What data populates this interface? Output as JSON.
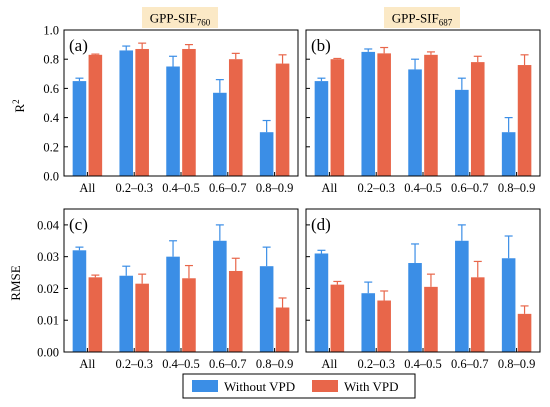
{
  "figure": {
    "col_titles": [
      {
        "base": "GPP-SIF",
        "sub": "760"
      },
      {
        "base": "GPP-SIF",
        "sub": "687"
      }
    ],
    "legend": [
      {
        "label": "Without VPD",
        "color": "#3b8ee6"
      },
      {
        "label": "With VPD",
        "color": "#e8664a"
      }
    ],
    "colors": {
      "without": "#3b8ee6",
      "with": "#e8664a",
      "title_box": "#fbe9c6",
      "error_bar": "#3b8ee6"
    }
  },
  "chart_data": [
    {
      "panel": "(a)",
      "type": "bar",
      "categories": [
        "All",
        "0.2–0.3",
        "0.4–0.5",
        "0.6–0.7",
        "0.8–0.9"
      ],
      "ylabel": {
        "base": "R",
        "sup": "2"
      },
      "ylim": [
        0,
        1.0
      ],
      "yticks": [
        "0.0",
        "0.2",
        "0.4",
        "0.6",
        "0.8",
        "1.0"
      ],
      "ytick_values": [
        0,
        0.2,
        0.4,
        0.6,
        0.8,
        1.0
      ],
      "series": [
        {
          "name": "Without VPD",
          "values": [
            0.65,
            0.86,
            0.75,
            0.57,
            0.3
          ],
          "errors": [
            0.02,
            0.03,
            0.07,
            0.09,
            0.08
          ]
        },
        {
          "name": "With VPD",
          "values": [
            0.83,
            0.87,
            0.87,
            0.8,
            0.77
          ],
          "errors": [
            0.005,
            0.04,
            0.03,
            0.04,
            0.06
          ]
        }
      ]
    },
    {
      "panel": "(b)",
      "type": "bar",
      "categories": [
        "All",
        "0.2–0.3",
        "0.4–0.5",
        "0.6–0.7",
        "0.8–0.9"
      ],
      "ylim": [
        0,
        1.0
      ],
      "ytick_values": [
        0,
        0.2,
        0.4,
        0.6,
        0.8,
        1.0
      ],
      "series": [
        {
          "name": "Without VPD",
          "values": [
            0.65,
            0.85,
            0.73,
            0.59,
            0.3
          ],
          "errors": [
            0.02,
            0.02,
            0.07,
            0.08,
            0.1
          ]
        },
        {
          "name": "With VPD",
          "values": [
            0.8,
            0.84,
            0.83,
            0.78,
            0.76
          ],
          "errors": [
            0.005,
            0.04,
            0.02,
            0.04,
            0.07
          ]
        }
      ]
    },
    {
      "panel": "(c)",
      "type": "bar",
      "categories": [
        "All",
        "0.2–0.3",
        "0.4–0.5",
        "0.6–0.7",
        "0.8–0.9"
      ],
      "ylabel": {
        "base": "RMSE",
        "sup": ""
      },
      "ylim": [
        0,
        0.045
      ],
      "yticks": [
        "0.00",
        "0.01",
        "0.02",
        "0.03",
        "0.04"
      ],
      "ytick_values": [
        0,
        0.01,
        0.02,
        0.03,
        0.04
      ],
      "series": [
        {
          "name": "Without VPD",
          "values": [
            0.032,
            0.024,
            0.03,
            0.035,
            0.027
          ],
          "errors": [
            0.001,
            0.003,
            0.005,
            0.005,
            0.006
          ]
        },
        {
          "name": "With VPD",
          "values": [
            0.0235,
            0.0215,
            0.0232,
            0.0255,
            0.014
          ],
          "errors": [
            0.0007,
            0.003,
            0.004,
            0.004,
            0.003
          ]
        }
      ]
    },
    {
      "panel": "(d)",
      "type": "bar",
      "categories": [
        "All",
        "0.2–0.3",
        "0.4–0.5",
        "0.6–0.7",
        "0.8–0.9"
      ],
      "ylim": [
        0,
        0.045
      ],
      "ytick_values": [
        0,
        0.01,
        0.02,
        0.03,
        0.04
      ],
      "series": [
        {
          "name": "Without VPD",
          "values": [
            0.031,
            0.0185,
            0.028,
            0.035,
            0.0295
          ],
          "errors": [
            0.001,
            0.0035,
            0.006,
            0.005,
            0.007
          ]
        },
        {
          "name": "With VPD",
          "values": [
            0.0212,
            0.0162,
            0.0205,
            0.0235,
            0.012
          ],
          "errors": [
            0.001,
            0.003,
            0.004,
            0.005,
            0.0025
          ]
        }
      ]
    }
  ]
}
